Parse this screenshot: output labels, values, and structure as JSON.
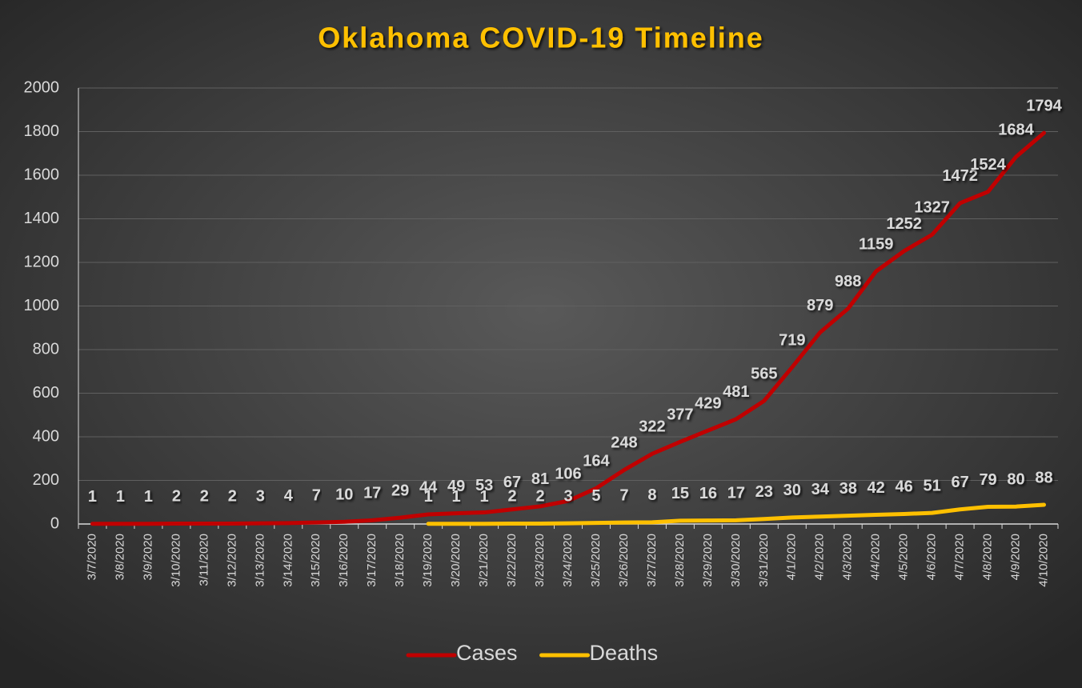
{
  "chart_data": {
    "type": "line",
    "title": "Oklahoma  COVID-19  Timeline",
    "categories": [
      "3/7/2020",
      "3/8/2020",
      "3/9/2020",
      "3/10/2020",
      "3/11/2020",
      "3/12/2020",
      "3/13/2020",
      "3/14/2020",
      "3/15/2020",
      "3/16/2020",
      "3/17/2020",
      "3/18/2020",
      "3/19/2020",
      "3/20/2020",
      "3/21/2020",
      "3/22/2020",
      "3/23/2020",
      "3/24/2020",
      "3/25/2020",
      "3/26/2020",
      "3/27/2020",
      "3/28/2020",
      "3/29/2020",
      "3/30/2020",
      "3/31/2020",
      "4/1/2020",
      "4/2/2020",
      "4/3/2020",
      "4/4/2020",
      "4/5/2020",
      "4/6/2020",
      "4/7/2020",
      "4/8/2020",
      "4/9/2020",
      "4/10/2020"
    ],
    "series": [
      {
        "name": "Cases",
        "color": "#c00000",
        "values": [
          1,
          1,
          1,
          2,
          2,
          2,
          3,
          4,
          7,
          10,
          17,
          29,
          44,
          49,
          53,
          67,
          81,
          106,
          164,
          248,
          322,
          377,
          429,
          481,
          565,
          719,
          879,
          988,
          1159,
          1252,
          1327,
          1472,
          1524,
          1684,
          1794
        ]
      },
      {
        "name": "Deaths",
        "color": "#ffc000",
        "values": [
          null,
          null,
          null,
          null,
          null,
          null,
          null,
          null,
          null,
          null,
          null,
          null,
          1,
          1,
          1,
          2,
          2,
          3,
          5,
          7,
          8,
          15,
          16,
          17,
          23,
          30,
          34,
          38,
          42,
          46,
          51,
          67,
          79,
          80,
          88
        ]
      }
    ],
    "ylim": [
      0,
      2000
    ],
    "yticks": [
      0,
      200,
      400,
      600,
      800,
      1000,
      1200,
      1400,
      1600,
      1800,
      2000
    ],
    "grid": true,
    "legend": "bottom"
  }
}
